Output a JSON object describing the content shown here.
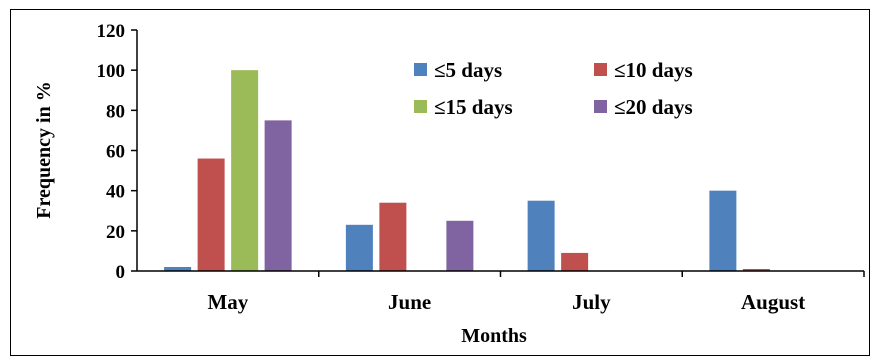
{
  "chart_data": {
    "type": "bar",
    "categories": [
      "May",
      "June",
      "July",
      "August"
    ],
    "series": [
      {
        "name": "≤5 days",
        "values": [
          2,
          23,
          35,
          40
        ],
        "color": "#4F81BD"
      },
      {
        "name": "≤10 days",
        "values": [
          56,
          34,
          9,
          1
        ],
        "color": "#C0504D"
      },
      {
        "name": "≤15 days",
        "values": [
          100,
          0,
          0,
          0
        ],
        "color": "#9BBB59"
      },
      {
        "name": "≤20 days",
        "values": [
          75,
          25,
          0,
          0
        ],
        "color": "#8064A2"
      }
    ],
    "xlabel": "Months",
    "ylabel": "Frequency in %",
    "ylim": [
      0,
      120
    ],
    "yticks": [
      0,
      20,
      40,
      60,
      80,
      100,
      120
    ],
    "grid": false,
    "legend_position": "top-right"
  }
}
